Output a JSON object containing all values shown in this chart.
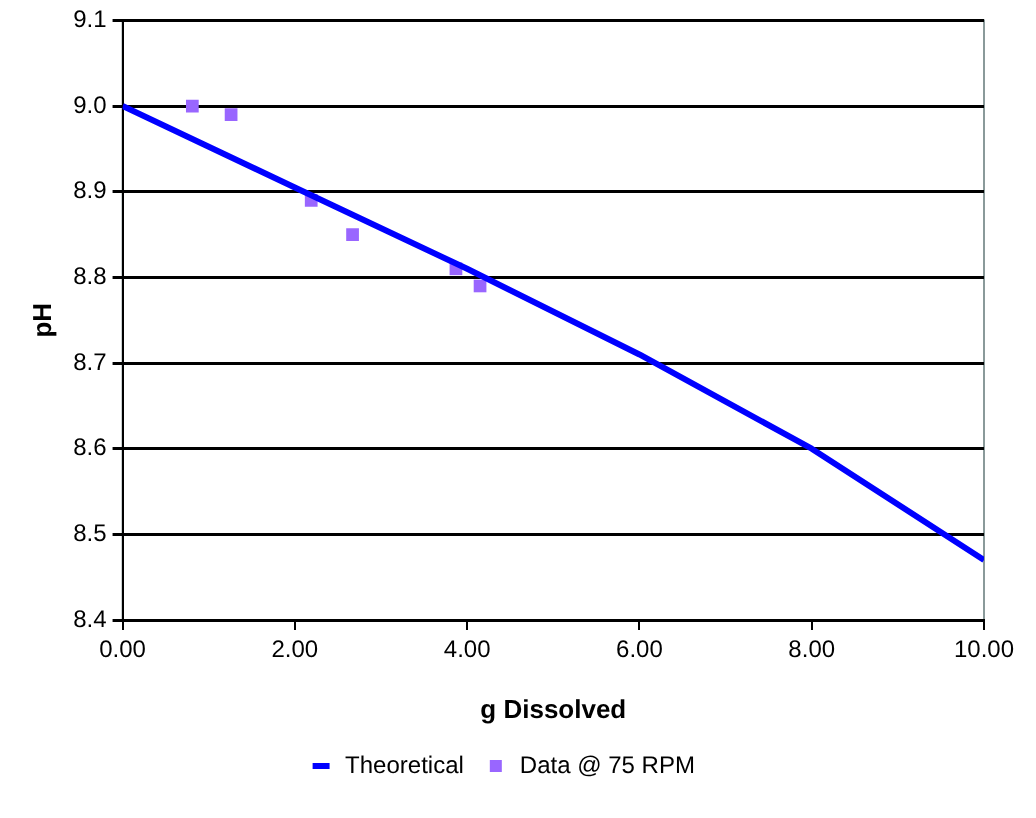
{
  "chart_data": {
    "type": "scatter",
    "xlabel": "g Dissolved",
    "ylabel": "pH",
    "xlim": [
      0,
      10
    ],
    "xticks": [
      {
        "value": 0,
        "label": "0.00"
      },
      {
        "value": 2,
        "label": "2.00"
      },
      {
        "value": 4,
        "label": "4.00"
      },
      {
        "value": 6,
        "label": "6.00"
      },
      {
        "value": 8,
        "label": "8.00"
      },
      {
        "value": 10,
        "label": "10.00"
      }
    ],
    "ylim": [
      8.4,
      9.1
    ],
    "yticks": [
      {
        "value": 8.4,
        "label": "8.4"
      },
      {
        "value": 8.5,
        "label": "8.5"
      },
      {
        "value": 8.6,
        "label": "8.6"
      },
      {
        "value": 8.7,
        "label": "8.7"
      },
      {
        "value": 8.8,
        "label": "8.8"
      },
      {
        "value": 8.9,
        "label": "8.9"
      },
      {
        "value": 9.0,
        "label": "9.0"
      },
      {
        "value": 9.1,
        "label": "9.1"
      }
    ],
    "grid": "y",
    "legend": "bottom",
    "series": [
      {
        "name": "Theoretical",
        "type": "line",
        "color": "#0000ff",
        "marker": "none",
        "x": [
          0,
          2,
          4,
          6,
          8,
          10
        ],
        "values": [
          9.0,
          8.905,
          8.81,
          8.71,
          8.6,
          8.47
        ]
      },
      {
        "name": "Data @ 75 RPM",
        "color": "#9966ff",
        "marker": "square",
        "x": [
          0.81,
          1.26,
          2.19,
          2.67,
          3.87,
          4.15
        ],
        "values": [
          9.0,
          8.99,
          8.89,
          8.85,
          8.81,
          8.79
        ]
      }
    ]
  }
}
